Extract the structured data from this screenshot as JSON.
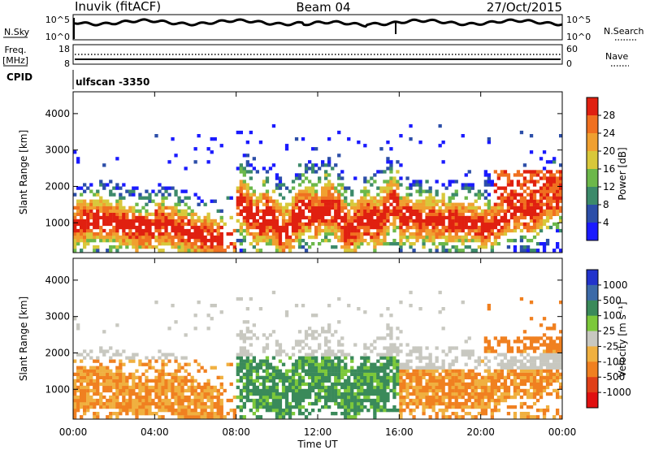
{
  "header": {
    "station": "Inuvik (fitACF)",
    "beam": "Beam 04",
    "date": "27/Oct/2015"
  },
  "top_panels": {
    "nsky_label": "N.Sky",
    "nsky_ticks": [
      "10^5",
      "10^0"
    ],
    "nsearch_label": "N.Search",
    "nsearch_ticks": [
      "10^5",
      "10^0"
    ],
    "freq_label": "Freq.",
    "freq_unit": "[MHz]",
    "freq_ticks": [
      "18",
      "8"
    ],
    "nave_label": "Nave",
    "nave_ticks": [
      "60",
      "0"
    ],
    "cpid_label": "CPID",
    "cpid_value": "ulfscan -3350"
  },
  "chart_data": [
    {
      "type": "heatmap",
      "quantity": "Power",
      "ylabel": "Slant Range [km]",
      "ylim": [
        180,
        4600
      ],
      "yticks": [
        "1000",
        "2000",
        "3000",
        "4000"
      ],
      "xlim": [
        0,
        24
      ],
      "colorbar_label": "Power [dB]",
      "colorbar_ticks": [
        "4",
        "8",
        "12",
        "16",
        "20",
        "24",
        "28"
      ],
      "colors": [
        "#1a1aff",
        "#2c4ea8",
        "#3c8a6a",
        "#6cb84a",
        "#d8c83a",
        "#f0a030",
        "#f07020",
        "#e02010"
      ],
      "grid": false
    },
    {
      "type": "heatmap",
      "quantity": "Velocity",
      "ylabel": "Slant Range [km]",
      "ylim": [
        180,
        4600
      ],
      "yticks": [
        "1000",
        "2000",
        "3000",
        "4000"
      ],
      "xlim": [
        0,
        24
      ],
      "xlabel": "Time UT",
      "xticks": [
        "00:00",
        "04:00",
        "08:00",
        "12:00",
        "16:00",
        "20:00",
        "00:00"
      ],
      "colorbar_label": "Velocity [m s⁻¹]",
      "colorbar_ticks": [
        "1000",
        "500",
        "100",
        "25",
        "-25",
        "-100",
        "-500",
        "-1000"
      ],
      "colors": [
        "#2233cc",
        "#3c6aa8",
        "#3a8a5a",
        "#7cc83a",
        "#c8c8c0",
        "#f0b040",
        "#f08020",
        "#e04018",
        "#e01010"
      ],
      "grid": false
    }
  ]
}
